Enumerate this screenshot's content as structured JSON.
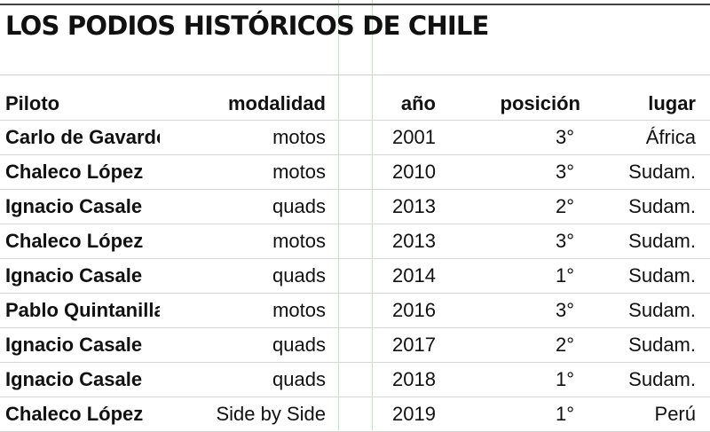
{
  "chart_data": {
    "type": "table",
    "title": "LOS PODIOS HISTÓRICOS DE CHILE",
    "columns": [
      "Piloto",
      "modalidad",
      "año",
      "posición",
      "lugar"
    ],
    "rows": [
      [
        "Carlo de Gavardo",
        "motos",
        "2001",
        "3°",
        "África"
      ],
      [
        "Chaleco López",
        "motos",
        "2010",
        "3°",
        "Sudam."
      ],
      [
        "Ignacio Casale",
        "quads",
        "2013",
        "2°",
        "Sudam."
      ],
      [
        "Chaleco López",
        "motos",
        "2013",
        "3°",
        "Sudam."
      ],
      [
        "Ignacio Casale",
        "quads",
        "2014",
        "1°",
        "Sudam."
      ],
      [
        "Pablo Quintanilla",
        "motos",
        "2016",
        "3°",
        "Sudam."
      ],
      [
        "Ignacio Casale",
        "quads",
        "2017",
        "2°",
        "Sudam."
      ],
      [
        "Ignacio Casale",
        "quads",
        "2018",
        "1°",
        "Sudam."
      ],
      [
        "Chaleco López",
        "Side by Side",
        "2019",
        "1°",
        "Perú"
      ]
    ]
  }
}
